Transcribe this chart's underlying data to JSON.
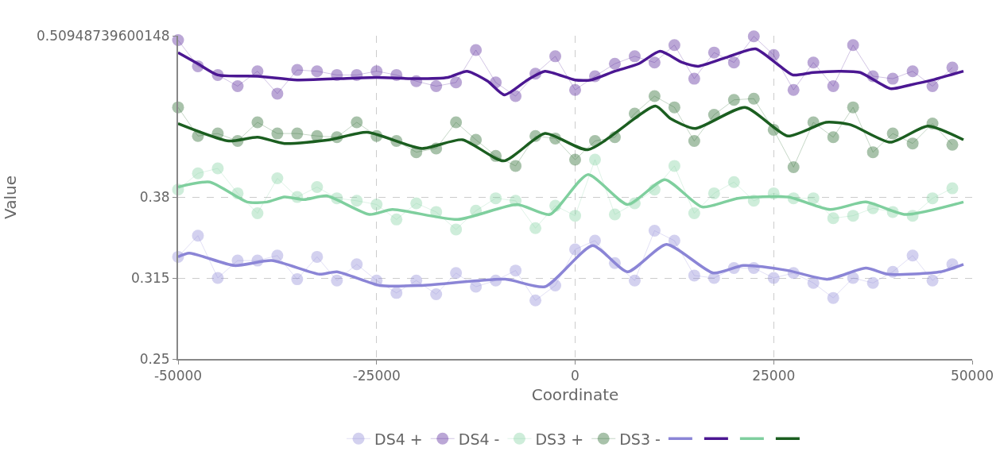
{
  "chart_data": {
    "type": "line",
    "xlabel": "Coordinate",
    "ylabel": "Value",
    "xlim": [
      -50000,
      50000
    ],
    "xticks": [
      -50000,
      -25000,
      0,
      25000,
      50000
    ],
    "ylim": [
      0.25,
      0.50948739600148
    ],
    "yticks": [
      0.25,
      0.315,
      0.38,
      0.50948739600148
    ],
    "grid": true,
    "legend": "bottom",
    "x": [
      -50000,
      -47500,
      -45000,
      -42500,
      -40000,
      -37500,
      -35000,
      -32500,
      -30000,
      -27500,
      -25000,
      -22500,
      -20000,
      -17500,
      -15000,
      -12500,
      -10000,
      -7500,
      -5000,
      -2500,
      0,
      2500,
      5000,
      7500,
      10000,
      12500,
      15000,
      17500,
      20000,
      22500,
      25000,
      27500,
      30000,
      32500,
      35000,
      37500,
      40000,
      42500,
      45000,
      47500
    ],
    "series": [
      {
        "name": "DS4 +",
        "color": "#8b85d6",
        "marker": "circle",
        "values": [
          0.332,
          0.349,
          0.315,
          0.329,
          0.329,
          0.333,
          0.314,
          0.332,
          0.313,
          0.326,
          0.313,
          0.303,
          0.313,
          0.302,
          0.319,
          0.308,
          0.313,
          0.321,
          0.297,
          0.309,
          0.338,
          0.345,
          0.327,
          0.313,
          0.353,
          0.345,
          0.317,
          0.315,
          0.323,
          0.323,
          0.315,
          0.319,
          0.311,
          0.299,
          0.315,
          0.311,
          0.32,
          0.333,
          0.313,
          0.326
        ]
      },
      {
        "name": "DS4 -",
        "color": "#4b1792",
        "marker": "circle",
        "values": [
          0.506,
          0.485,
          0.478,
          0.469,
          0.481,
          0.463,
          0.482,
          0.481,
          0.478,
          0.478,
          0.481,
          0.478,
          0.473,
          0.469,
          0.472,
          0.498,
          0.472,
          0.461,
          0.479,
          0.493,
          0.466,
          0.477,
          0.487,
          0.493,
          0.488,
          0.502,
          0.475,
          0.496,
          0.488,
          0.509,
          0.494,
          0.466,
          0.488,
          0.469,
          0.502,
          0.477,
          0.475,
          0.481,
          0.469,
          0.484
        ]
      },
      {
        "name": "DS3 +",
        "color": "#7fcf9e",
        "marker": "circle",
        "values": [
          0.386,
          0.399,
          0.403,
          0.383,
          0.367,
          0.395,
          0.38,
          0.388,
          0.379,
          0.377,
          0.374,
          0.362,
          0.375,
          0.368,
          0.354,
          0.369,
          0.379,
          0.377,
          0.355,
          0.373,
          0.365,
          0.41,
          0.366,
          0.375,
          0.386,
          0.405,
          0.367,
          0.383,
          0.392,
          0.377,
          0.383,
          0.379,
          0.379,
          0.363,
          0.365,
          0.371,
          0.368,
          0.365,
          0.379,
          0.387
        ]
      },
      {
        "name": "DS3 -",
        "color": "#1b5e20",
        "marker": "circle",
        "values": [
          0.452,
          0.429,
          0.431,
          0.425,
          0.44,
          0.431,
          0.431,
          0.429,
          0.428,
          0.44,
          0.429,
          0.425,
          0.416,
          0.419,
          0.44,
          0.426,
          0.413,
          0.405,
          0.429,
          0.427,
          0.41,
          0.425,
          0.428,
          0.447,
          0.461,
          0.452,
          0.425,
          0.446,
          0.458,
          0.459,
          0.434,
          0.404,
          0.44,
          0.428,
          0.452,
          0.416,
          0.431,
          0.423,
          0.439,
          0.422
        ]
      },
      {
        "color": "#8b85d6",
        "marker": "none",
        "x": [
          -50000,
          -48600,
          -42900,
          -38200,
          -32200,
          -30000,
          -24600,
          -19500,
          -8800,
          -3800,
          2200,
          6600,
          11500,
          17400,
          21200,
          26800,
          31800,
          36600,
          39400,
          46000,
          48900
        ],
        "values": [
          0.332,
          0.335,
          0.325,
          0.329,
          0.318,
          0.32,
          0.309,
          0.309,
          0.314,
          0.308,
          0.341,
          0.32,
          0.342,
          0.319,
          0.325,
          0.321,
          0.314,
          0.323,
          0.318,
          0.32,
          0.326
        ]
      },
      {
        "color": "#4b1792",
        "marker": "none",
        "x": [
          -50000,
          -47500,
          -45000,
          -40000,
          -35000,
          -30000,
          -25000,
          -20000,
          -16000,
          -13600,
          -11000,
          -8900,
          -6000,
          -3800,
          0,
          2000,
          5000,
          8000,
          10700,
          13500,
          15500,
          19000,
          22700,
          25200,
          27400,
          30000,
          33400,
          35900,
          39700,
          42200,
          45000,
          48900
        ],
        "values": [
          0.496,
          0.487,
          0.478,
          0.477,
          0.474,
          0.475,
          0.476,
          0.475,
          0.476,
          0.481,
          0.473,
          0.462,
          0.474,
          0.481,
          0.474,
          0.474,
          0.481,
          0.487,
          0.497,
          0.488,
          0.485,
          0.492,
          0.499,
          0.488,
          0.478,
          0.48,
          0.481,
          0.48,
          0.467,
          0.47,
          0.474,
          0.481
        ]
      },
      {
        "color": "#7fcf9e",
        "marker": "none",
        "x": [
          -50000,
          -46000,
          -41300,
          -38800,
          -36600,
          -34100,
          -31300,
          -25900,
          -23000,
          -14800,
          -7300,
          -3200,
          1600,
          6600,
          11300,
          16000,
          20500,
          26800,
          32100,
          36600,
          41600,
          48900
        ],
        "values": [
          0.388,
          0.392,
          0.376,
          0.376,
          0.38,
          0.378,
          0.381,
          0.366,
          0.37,
          0.362,
          0.374,
          0.366,
          0.398,
          0.374,
          0.394,
          0.372,
          0.379,
          0.38,
          0.37,
          0.376,
          0.366,
          0.376
        ]
      },
      {
        "color": "#1b5e20",
        "marker": "none",
        "x": [
          -50000,
          -43600,
          -40000,
          -36600,
          -30900,
          -26200,
          -19300,
          -14200,
          -9000,
          -3800,
          1600,
          10100,
          12000,
          15100,
          21400,
          26800,
          31600,
          34700,
          39700,
          44400,
          48900
        ],
        "values": [
          0.439,
          0.425,
          0.428,
          0.423,
          0.426,
          0.432,
          0.419,
          0.426,
          0.409,
          0.431,
          0.418,
          0.453,
          0.443,
          0.435,
          0.452,
          0.429,
          0.44,
          0.438,
          0.424,
          0.437,
          0.426
        ]
      }
    ]
  }
}
